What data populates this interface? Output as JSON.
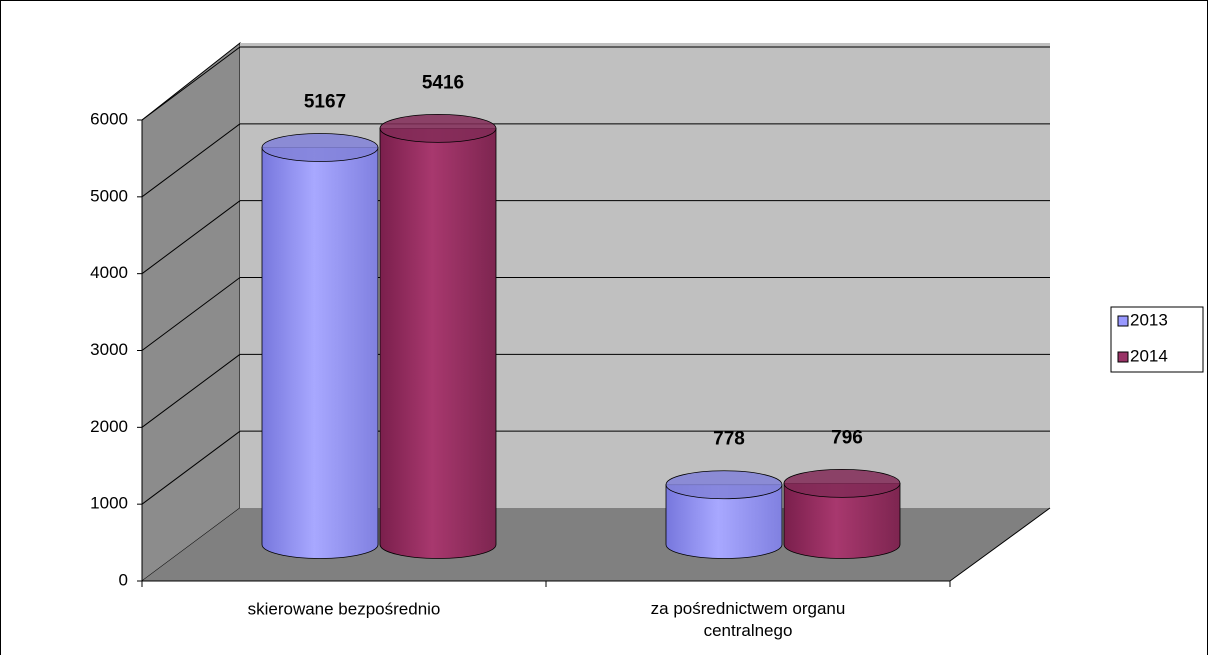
{
  "chart_data": {
    "type": "bar3d",
    "categories": [
      "skierowane bezpośrednio",
      "za pośrednictwem organu centralnego"
    ],
    "series": [
      {
        "name": "2013",
        "color": "#9999ff",
        "values": [
          5167,
          778
        ]
      },
      {
        "name": "2014",
        "color": "#993366",
        "values": [
          5416,
          796
        ]
      }
    ],
    "ylim": [
      0,
      6000
    ],
    "yticks": [
      0,
      1000,
      2000,
      3000,
      4000,
      5000,
      6000
    ],
    "grid": true,
    "legend": "right"
  }
}
